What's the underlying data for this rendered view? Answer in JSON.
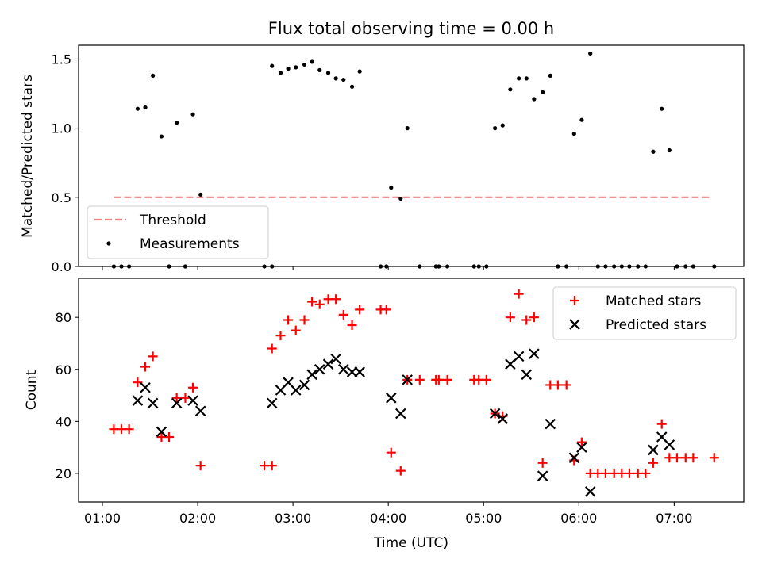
{
  "chart_data": [
    {
      "type": "scatter",
      "title": "Flux total observing time = 0.00 h",
      "ylabel": "Matched/Predicted stars",
      "xlabel": "",
      "ylim": [
        0,
        1.6
      ],
      "xlim_hours": [
        0.75,
        7.73
      ],
      "yticks": [
        {
          "v": 0.0,
          "label": "0.0"
        },
        {
          "v": 0.5,
          "label": "0.5"
        },
        {
          "v": 1.0,
          "label": "1.0"
        },
        {
          "v": 1.5,
          "label": "1.5"
        }
      ],
      "legend": {
        "placement": "lower-left",
        "entries": [
          "Threshold",
          "Measurements"
        ]
      },
      "threshold": {
        "name": "Threshold",
        "value": 0.5,
        "x_start": 1.12,
        "x_end": 7.38,
        "color": "#f08080"
      },
      "series": [
        {
          "name": "Measurements",
          "color": "#000000",
          "marker": "dot",
          "points": [
            [
              1.12,
              0
            ],
            [
              1.2,
              0
            ],
            [
              1.28,
              0
            ],
            [
              1.37,
              1.14
            ],
            [
              1.45,
              1.15
            ],
            [
              1.53,
              1.38
            ],
            [
              1.62,
              0.94
            ],
            [
              1.7,
              0
            ],
            [
              1.78,
              1.04
            ],
            [
              1.87,
              0
            ],
            [
              1.95,
              1.1
            ],
            [
              2.03,
              0.52
            ],
            [
              2.7,
              0
            ],
            [
              2.78,
              0
            ],
            [
              2.78,
              1.45
            ],
            [
              2.87,
              1.4
            ],
            [
              2.95,
              1.43
            ],
            [
              3.03,
              1.44
            ],
            [
              3.12,
              1.46
            ],
            [
              3.2,
              1.48
            ],
            [
              3.28,
              1.42
            ],
            [
              3.37,
              1.4
            ],
            [
              3.45,
              1.36
            ],
            [
              3.53,
              1.35
            ],
            [
              3.62,
              1.3
            ],
            [
              3.7,
              1.41
            ],
            [
              3.92,
              0
            ],
            [
              3.98,
              0
            ],
            [
              4.03,
              0.57
            ],
            [
              4.13,
              0.49
            ],
            [
              4.2,
              1.0
            ],
            [
              4.33,
              0
            ],
            [
              4.5,
              0
            ],
            [
              4.53,
              0
            ],
            [
              4.62,
              0
            ],
            [
              4.9,
              0
            ],
            [
              4.95,
              0
            ],
            [
              5.03,
              0
            ],
            [
              5.12,
              1.0
            ],
            [
              5.2,
              1.02
            ],
            [
              5.28,
              1.28
            ],
            [
              5.37,
              1.36
            ],
            [
              5.45,
              1.36
            ],
            [
              5.53,
              1.21
            ],
            [
              5.62,
              1.26
            ],
            [
              5.7,
              1.38
            ],
            [
              5.78,
              0
            ],
            [
              5.87,
              0
            ],
            [
              5.95,
              0.96
            ],
            [
              6.03,
              1.06
            ],
            [
              6.12,
              1.54
            ],
            [
              6.2,
              0
            ],
            [
              6.28,
              0
            ],
            [
              6.37,
              0
            ],
            [
              6.45,
              0
            ],
            [
              6.53,
              0
            ],
            [
              6.62,
              0
            ],
            [
              6.7,
              0
            ],
            [
              6.78,
              0.83
            ],
            [
              6.87,
              1.14
            ],
            [
              6.95,
              0.84
            ],
            [
              7.03,
              0
            ],
            [
              7.12,
              0
            ],
            [
              7.2,
              0
            ],
            [
              7.42,
              0
            ]
          ]
        }
      ]
    },
    {
      "type": "scatter",
      "title": "",
      "ylabel": "Count",
      "xlabel": "Time (UTC)",
      "ylim": [
        9,
        95
      ],
      "xlim_hours": [
        0.75,
        7.73
      ],
      "yticks": [
        {
          "v": 20,
          "label": "20"
        },
        {
          "v": 40,
          "label": "40"
        },
        {
          "v": 60,
          "label": "60"
        },
        {
          "v": 80,
          "label": "80"
        }
      ],
      "xticks": [
        {
          "v": 1,
          "label": "01:00"
        },
        {
          "v": 2,
          "label": "02:00"
        },
        {
          "v": 3,
          "label": "03:00"
        },
        {
          "v": 4,
          "label": "04:00"
        },
        {
          "v": 5,
          "label": "05:00"
        },
        {
          "v": 6,
          "label": "06:00"
        },
        {
          "v": 7,
          "label": "07:00"
        }
      ],
      "legend": {
        "placement": "top-right",
        "entries": [
          "Matched stars",
          "Predicted stars"
        ]
      },
      "series": [
        {
          "name": "Matched stars",
          "color": "#ff0000",
          "marker": "plus",
          "points": [
            [
              1.12,
              37
            ],
            [
              1.2,
              37
            ],
            [
              1.28,
              37
            ],
            [
              1.37,
              55
            ],
            [
              1.45,
              61
            ],
            [
              1.53,
              65
            ],
            [
              1.62,
              34
            ],
            [
              1.7,
              34
            ],
            [
              1.78,
              49
            ],
            [
              1.87,
              49
            ],
            [
              1.95,
              53
            ],
            [
              2.03,
              23
            ],
            [
              2.7,
              23
            ],
            [
              2.78,
              23
            ],
            [
              2.78,
              68
            ],
            [
              2.87,
              73
            ],
            [
              2.95,
              79
            ],
            [
              3.03,
              75
            ],
            [
              3.12,
              79
            ],
            [
              3.2,
              86
            ],
            [
              3.28,
              85
            ],
            [
              3.37,
              87
            ],
            [
              3.45,
              87
            ],
            [
              3.53,
              81
            ],
            [
              3.62,
              77
            ],
            [
              3.7,
              83
            ],
            [
              3.92,
              83
            ],
            [
              3.98,
              83
            ],
            [
              4.03,
              28
            ],
            [
              4.13,
              21
            ],
            [
              4.2,
              56
            ],
            [
              4.33,
              56
            ],
            [
              4.5,
              56
            ],
            [
              4.53,
              56
            ],
            [
              4.62,
              56
            ],
            [
              4.9,
              56
            ],
            [
              4.95,
              56
            ],
            [
              5.03,
              56
            ],
            [
              5.12,
              43
            ],
            [
              5.2,
              42
            ],
            [
              5.28,
              80
            ],
            [
              5.37,
              89
            ],
            [
              5.45,
              79
            ],
            [
              5.53,
              80
            ],
            [
              5.62,
              24
            ],
            [
              5.7,
              54
            ],
            [
              5.78,
              54
            ],
            [
              5.87,
              54
            ],
            [
              5.95,
              25
            ],
            [
              6.03,
              32
            ],
            [
              6.12,
              20
            ],
            [
              6.2,
              20
            ],
            [
              6.28,
              20
            ],
            [
              6.37,
              20
            ],
            [
              6.45,
              20
            ],
            [
              6.53,
              20
            ],
            [
              6.62,
              20
            ],
            [
              6.7,
              20
            ],
            [
              6.78,
              24
            ],
            [
              6.87,
              39
            ],
            [
              6.95,
              26
            ],
            [
              7.03,
              26
            ],
            [
              7.12,
              26
            ],
            [
              7.2,
              26
            ],
            [
              7.42,
              26
            ]
          ]
        },
        {
          "name": "Predicted stars",
          "color": "#000000",
          "marker": "x",
          "points": [
            [
              1.37,
              48
            ],
            [
              1.45,
              53
            ],
            [
              1.53,
              47
            ],
            [
              1.62,
              36
            ],
            [
              1.78,
              47
            ],
            [
              1.95,
              48
            ],
            [
              2.03,
              44
            ],
            [
              2.78,
              47
            ],
            [
              2.87,
              52
            ],
            [
              2.95,
              55
            ],
            [
              3.03,
              52
            ],
            [
              3.12,
              54
            ],
            [
              3.2,
              58
            ],
            [
              3.28,
              60
            ],
            [
              3.37,
              62
            ],
            [
              3.45,
              64
            ],
            [
              3.53,
              60
            ],
            [
              3.62,
              59
            ],
            [
              3.7,
              59
            ],
            [
              4.03,
              49
            ],
            [
              4.13,
              43
            ],
            [
              4.2,
              56
            ],
            [
              5.12,
              43
            ],
            [
              5.2,
              41
            ],
            [
              5.28,
              62
            ],
            [
              5.37,
              65
            ],
            [
              5.45,
              58
            ],
            [
              5.53,
              66
            ],
            [
              5.62,
              19
            ],
            [
              5.7,
              39
            ],
            [
              5.95,
              26
            ],
            [
              6.03,
              30
            ],
            [
              6.12,
              13
            ],
            [
              6.78,
              29
            ],
            [
              6.87,
              34
            ],
            [
              6.95,
              31
            ]
          ]
        }
      ]
    }
  ]
}
